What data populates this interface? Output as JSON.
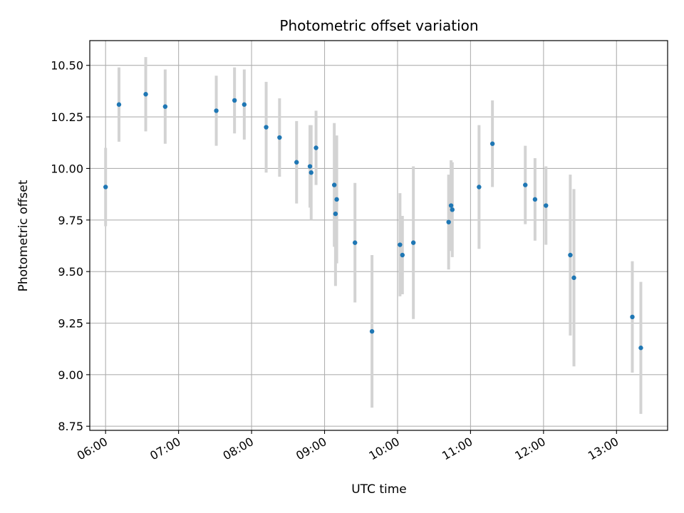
{
  "chart_data": {
    "type": "scatter",
    "title": "Photometric offset variation",
    "xlabel": "UTC time",
    "ylabel": "Photometric offset",
    "x_unit": "UTC time (HH:MM)",
    "xlim": [
      "05:47",
      "13:42"
    ],
    "ylim": [
      8.73,
      10.62
    ],
    "x_ticks": [
      "06:00",
      "07:00",
      "08:00",
      "09:00",
      "10:00",
      "11:00",
      "12:00",
      "13:00"
    ],
    "y_ticks": [
      8.75,
      9.0,
      9.25,
      9.5,
      9.75,
      10.0,
      10.25,
      10.5
    ],
    "y_tick_labels": [
      "8.75",
      "9.00",
      "9.25",
      "9.50",
      "9.75",
      "10.00",
      "10.25",
      "10.50"
    ],
    "grid": true,
    "colors": {
      "marker": "#1f77b4",
      "errorbar": "#d3d3d3",
      "grid": "#b0b0b0"
    },
    "points": [
      {
        "t": "06:00",
        "y": 9.91,
        "err": 0.19
      },
      {
        "t": "06:11",
        "y": 10.31,
        "err": 0.18
      },
      {
        "t": "06:33",
        "y": 10.36,
        "err": 0.18
      },
      {
        "t": "06:49",
        "y": 10.3,
        "err": 0.18
      },
      {
        "t": "07:31",
        "y": 10.28,
        "err": 0.17
      },
      {
        "t": "07:46",
        "y": 10.33,
        "err": 0.16
      },
      {
        "t": "07:54",
        "y": 10.31,
        "err": 0.17
      },
      {
        "t": "08:12",
        "y": 10.2,
        "err": 0.22
      },
      {
        "t": "08:23",
        "y": 10.15,
        "err": 0.19
      },
      {
        "t": "08:37",
        "y": 10.03,
        "err": 0.2
      },
      {
        "t": "08:48",
        "y": 10.01,
        "err": 0.2
      },
      {
        "t": "08:49",
        "y": 9.98,
        "err": 0.23
      },
      {
        "t": "08:53",
        "y": 10.1,
        "err": 0.18
      },
      {
        "t": "09:08",
        "y": 9.92,
        "err": 0.3
      },
      {
        "t": "09:09",
        "y": 9.78,
        "err": 0.35
      },
      {
        "t": "09:10",
        "y": 9.85,
        "err": 0.31
      },
      {
        "t": "09:25",
        "y": 9.64,
        "err": 0.29
      },
      {
        "t": "09:39",
        "y": 9.21,
        "err": 0.37
      },
      {
        "t": "10:02",
        "y": 9.63,
        "err": 0.25
      },
      {
        "t": "10:04",
        "y": 9.58,
        "err": 0.19
      },
      {
        "t": "10:13",
        "y": 9.64,
        "err": 0.37
      },
      {
        "t": "10:42",
        "y": 9.74,
        "err": 0.23
      },
      {
        "t": "10:44",
        "y": 9.82,
        "err": 0.22
      },
      {
        "t": "10:45",
        "y": 9.8,
        "err": 0.23
      },
      {
        "t": "11:07",
        "y": 9.91,
        "err": 0.3
      },
      {
        "t": "11:18",
        "y": 10.12,
        "err": 0.21
      },
      {
        "t": "11:45",
        "y": 9.92,
        "err": 0.19
      },
      {
        "t": "11:53",
        "y": 9.85,
        "err": 0.2
      },
      {
        "t": "12:02",
        "y": 9.82,
        "err": 0.19
      },
      {
        "t": "12:22",
        "y": 9.58,
        "err": 0.39
      },
      {
        "t": "12:25",
        "y": 9.47,
        "err": 0.43
      },
      {
        "t": "13:13",
        "y": 9.28,
        "err": 0.27
      },
      {
        "t": "13:20",
        "y": 9.13,
        "err": 0.32
      }
    ]
  }
}
